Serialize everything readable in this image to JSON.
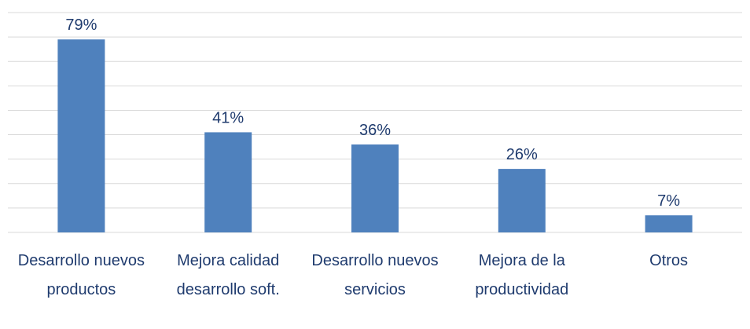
{
  "chart_data": {
    "type": "bar",
    "categories": [
      "Desarrollo nuevos productos",
      "Mejora calidad desarrollo soft.",
      "Desarrollo nuevos servicios",
      "Mejora de la productividad",
      "Otros"
    ],
    "values": [
      79,
      41,
      36,
      26,
      7
    ],
    "value_labels": [
      "79%",
      "41%",
      "36%",
      "26%",
      "7%"
    ],
    "color": "#4f81bd",
    "ylim": [
      0,
      90
    ],
    "yticks": [
      0,
      10,
      20,
      30,
      40,
      50,
      60,
      70,
      80,
      90
    ],
    "grid": true
  }
}
